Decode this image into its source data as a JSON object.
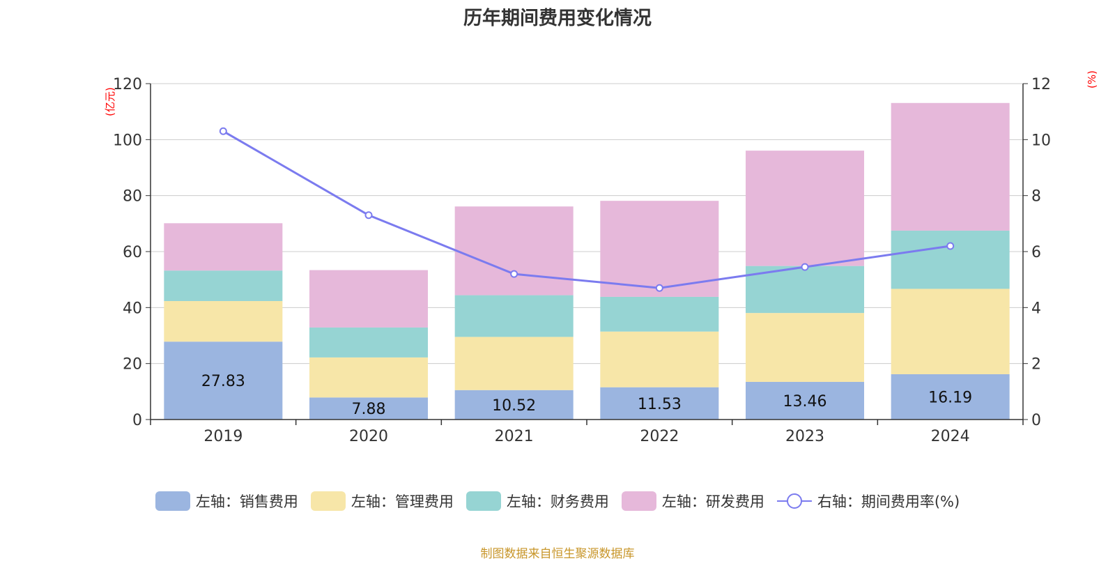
{
  "title": "历年期间费用变化情况",
  "source": "制图数据来自恒生聚源数据库",
  "colors": {
    "sales": "#9bb5e0",
    "admin": "#f7e6a8",
    "finance": "#96d4d3",
    "rnd": "#e6b8da",
    "rate": "#7b7bef",
    "unit": "#ff0000",
    "grid": "#cccccc",
    "axis": "#333333"
  },
  "chart_data": {
    "type": "bar",
    "stacked": true,
    "categories": [
      "2019",
      "2020",
      "2021",
      "2022",
      "2023",
      "2024"
    ],
    "series": [
      {
        "name": "左轴：销售费用",
        "axis": "left",
        "color_key": "sales",
        "values": [
          27.83,
          7.88,
          10.52,
          11.53,
          13.46,
          16.19
        ],
        "labels": [
          "27.83",
          "7.88",
          "10.52",
          "11.53",
          "13.46",
          "16.19"
        ]
      },
      {
        "name": "左轴：管理费用",
        "axis": "left",
        "color_key": "admin",
        "values": [
          14.5,
          14.3,
          19.0,
          19.9,
          24.6,
          30.5
        ]
      },
      {
        "name": "左轴：财务费用",
        "axis": "left",
        "color_key": "finance",
        "values": [
          10.9,
          10.7,
          14.9,
          12.4,
          16.8,
          20.8
        ]
      },
      {
        "name": "左轴：研发费用",
        "axis": "left",
        "color_key": "rnd",
        "values": [
          16.9,
          20.5,
          31.7,
          34.3,
          41.2,
          45.6
        ]
      },
      {
        "name": "右轴：期间费用率(%)",
        "axis": "right",
        "type": "line",
        "color_key": "rate",
        "values": [
          10.3,
          7.3,
          5.2,
          4.7,
          5.45,
          6.2
        ]
      }
    ],
    "left_axis": {
      "unit": "(亿元)",
      "min": 0,
      "max": 120,
      "ticks": [
        "0",
        "20",
        "40",
        "60",
        "80",
        "100",
        "120"
      ]
    },
    "right_axis": {
      "unit": "(%)",
      "min": 0,
      "max": 12,
      "ticks": [
        "0",
        "2",
        "4",
        "6",
        "8",
        "10",
        "12"
      ]
    },
    "grid": true,
    "legend_position": "bottom"
  }
}
